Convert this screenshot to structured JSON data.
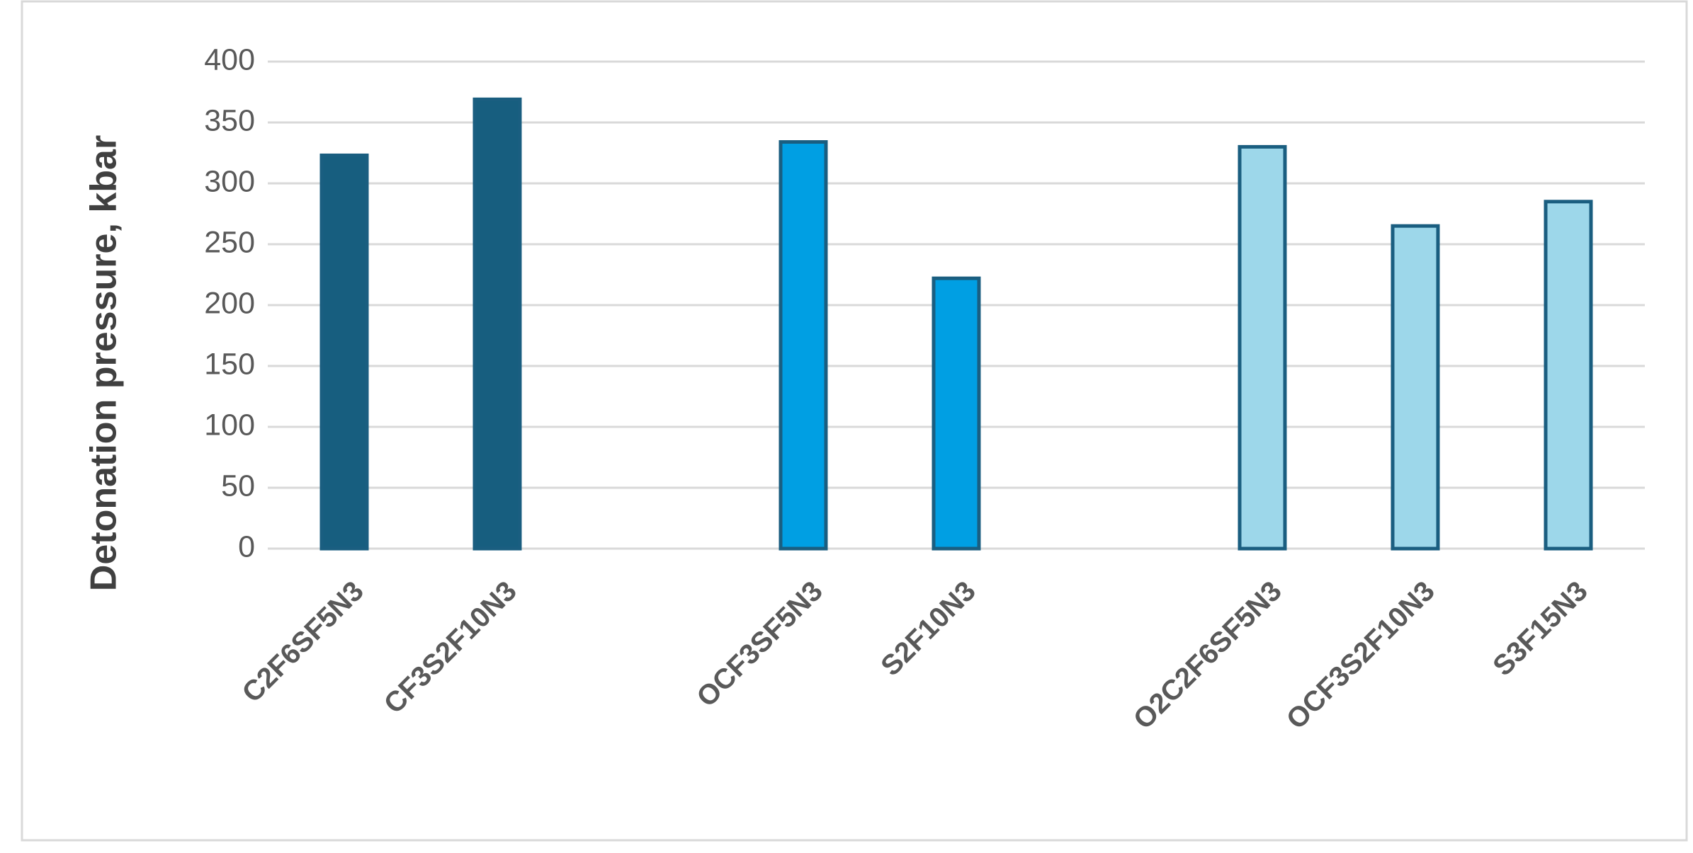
{
  "chart_data": {
    "type": "bar",
    "y_label": "Detonation pressure, kbar",
    "categories": [
      "C2F6SF5N3",
      "CF3S2F10N3",
      null,
      "OCF3SF5N3",
      "S2F10N3",
      null,
      "O2C2F6SF5N3",
      "OCF3S2F10N3",
      "S3F15N3"
    ],
    "values": [
      323,
      369,
      null,
      334,
      222,
      null,
      330,
      265,
      285
    ],
    "colors": [
      "#175e7f",
      "#175e7f",
      null,
      "#009fe3",
      "#009fe3",
      null,
      "#9dd7ea",
      "#9dd7ea",
      "#9dd7ea"
    ],
    "edgecolor": "#1a5e80",
    "ylim": [
      0,
      400
    ],
    "yticks": [
      0,
      50,
      100,
      150,
      200,
      250,
      300,
      350,
      400
    ],
    "grid": true
  }
}
